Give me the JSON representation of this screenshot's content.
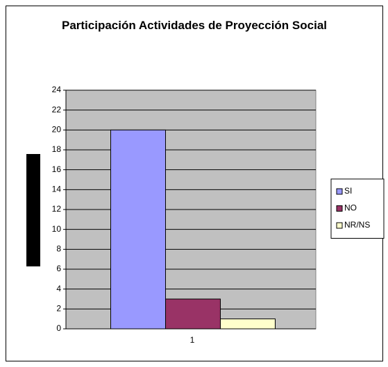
{
  "chart_data": {
    "type": "bar",
    "title": "Participación Actividades de Proyección Social",
    "categories": [
      "1"
    ],
    "series": [
      {
        "name": "SI",
        "color": "#9999ff",
        "values": [
          20
        ]
      },
      {
        "name": "NO",
        "color": "#993366",
        "values": [
          3
        ]
      },
      {
        "name": "NR/NS",
        "color": "#ffffcc",
        "values": [
          1
        ]
      }
    ],
    "ylim": [
      0,
      24
    ],
    "yticks": [
      0,
      2,
      4,
      6,
      8,
      10,
      12,
      14,
      16,
      18,
      20,
      22,
      24
    ],
    "grid": true,
    "legend": "right",
    "plot_background": "#c0c0c0"
  }
}
